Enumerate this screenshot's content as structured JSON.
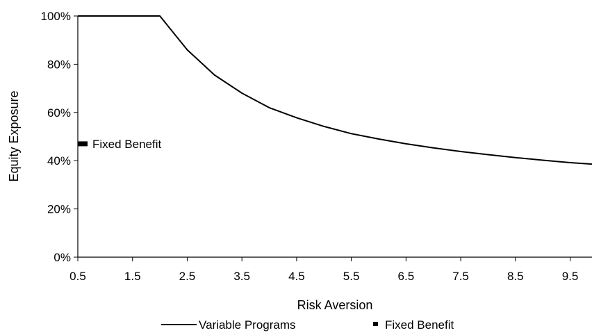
{
  "chart_data": {
    "type": "line",
    "title": "",
    "xlabel": "Risk Aversion",
    "ylabel": "Equity Exposure",
    "xlim": [
      0.5,
      9.9
    ],
    "ylim": [
      0,
      100
    ],
    "x_ticks": [
      0.5,
      1.5,
      2.5,
      3.5,
      4.5,
      5.5,
      6.5,
      7.5,
      8.5,
      9.5
    ],
    "x_tick_labels": [
      "0.5",
      "1.5",
      "2.5",
      "3.5",
      "4.5",
      "5.5",
      "6.5",
      "7.5",
      "8.5",
      "9.5"
    ],
    "y_ticks": [
      0,
      20,
      40,
      60,
      80,
      100
    ],
    "y_tick_labels": [
      "0%",
      "20%",
      "40%",
      "60%",
      "80%",
      "100%"
    ],
    "grid": false,
    "legend_position": "bottom",
    "series": [
      {
        "name": "Variable Programs",
        "color": "#000000",
        "marker": "none",
        "x": [
          0.5,
          1.0,
          1.5,
          2.0,
          2.5,
          3.0,
          3.5,
          4.0,
          4.5,
          5.0,
          5.5,
          6.0,
          6.5,
          7.0,
          7.5,
          8.0,
          8.5,
          9.0,
          9.5,
          9.9
        ],
        "y": [
          100,
          100,
          100,
          100,
          86,
          75.5,
          68,
          62,
          57.8,
          54.2,
          51.2,
          49,
          47,
          45.3,
          43.8,
          42.5,
          41.3,
          40.2,
          39.2,
          38.6
        ]
      },
      {
        "name": "Fixed Benefit",
        "color": "#000000",
        "marker": "dash",
        "x": [
          0.5
        ],
        "y": [
          47
        ]
      }
    ],
    "annotations": [
      {
        "text": "Fixed Benefit",
        "x": 0.5,
        "y": 47
      }
    ]
  }
}
